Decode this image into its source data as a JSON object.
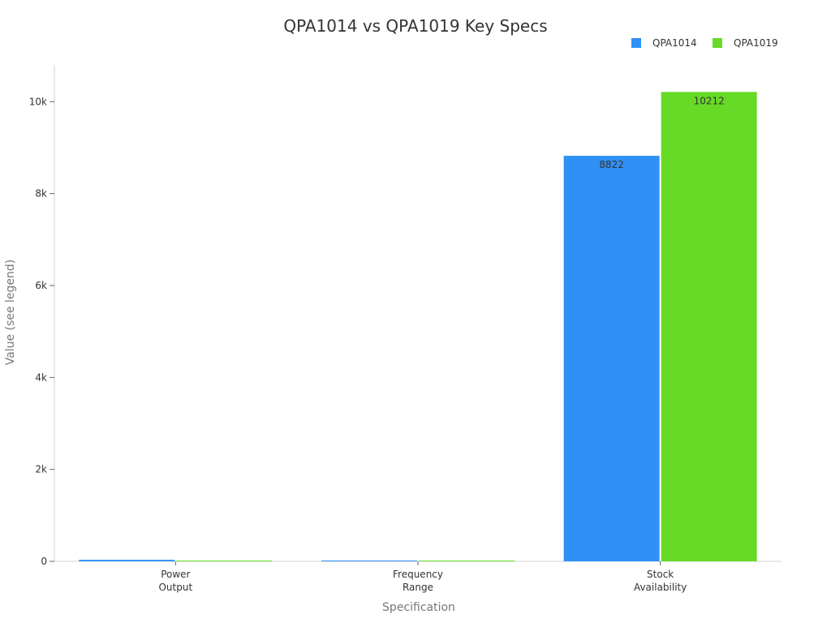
{
  "chart_data": {
    "type": "bar",
    "title": "QPA1014 vs QPA1019 Key Specs",
    "xlabel": "Specification",
    "ylabel": "Value (see legend)",
    "categories": [
      [
        "Power",
        "Output"
      ],
      [
        "Frequency",
        "Range"
      ],
      [
        "Stock",
        "Availability"
      ]
    ],
    "series": [
      {
        "name": "QPA1014",
        "color": "#2f90f6",
        "values": [
          34,
          4,
          8822
        ],
        "labels": [
          "",
          "",
          "8822"
        ]
      },
      {
        "name": "QPA1019",
        "color": "#67da26",
        "values": [
          15,
          3,
          10212
        ],
        "labels": [
          "",
          "",
          "10212"
        ]
      }
    ],
    "ylim": [
      0,
      10800
    ],
    "yticks": [
      0,
      2000,
      4000,
      6000,
      8000,
      10000
    ],
    "ytick_labels": [
      "0",
      "2k",
      "4k",
      "6k",
      "8k",
      "10k"
    ],
    "grid": false,
    "legend_position": "top-right"
  }
}
